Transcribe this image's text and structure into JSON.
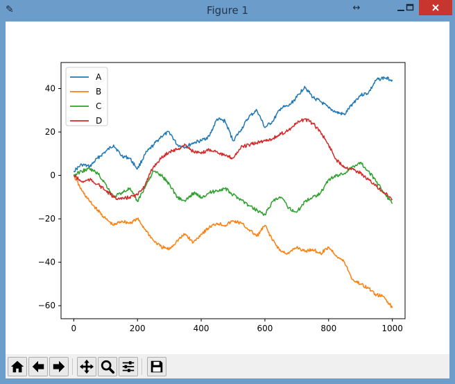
{
  "window": {
    "title": "Figure 1"
  },
  "icons": {
    "app": "pen-icon",
    "resize": "resize-arrows-icon",
    "minimize": "minimize-icon",
    "maximize": "maximize-icon",
    "close": "close-icon"
  },
  "toolbar": {
    "tools": [
      "home-icon",
      "back-arrow-icon",
      "forward-arrow-icon",
      "pan-icon",
      "zoom-icon",
      "configure-subplots-icon",
      "save-icon"
    ]
  },
  "colors": {
    "A": "#1f77b4",
    "B": "#ff7f0e",
    "C": "#2ca02c",
    "D": "#d62728"
  },
  "chart_data": {
    "type": "line",
    "title": "",
    "xlabel": "",
    "ylabel": "",
    "xlim": [
      -40,
      1040
    ],
    "ylim": [
      -66,
      52
    ],
    "x_ticks": [
      0,
      200,
      400,
      600,
      800,
      1000
    ],
    "y_ticks": [
      -60,
      -40,
      -20,
      0,
      20,
      40
    ],
    "x_tick_labels": [
      "0",
      "200",
      "400",
      "600",
      "800",
      "1000"
    ],
    "y_tick_labels": [
      "−60",
      "−40",
      "−20",
      "0",
      "20",
      "40"
    ],
    "grid": false,
    "legend": "upper-left",
    "x": [
      0,
      25,
      50,
      75,
      100,
      125,
      150,
      175,
      200,
      225,
      250,
      275,
      300,
      325,
      350,
      375,
      400,
      425,
      450,
      475,
      500,
      525,
      550,
      575,
      600,
      625,
      650,
      675,
      700,
      725,
      750,
      775,
      800,
      825,
      850,
      875,
      900,
      925,
      950,
      975,
      1000
    ],
    "series": [
      {
        "name": "A",
        "values": [
          2,
          5,
          4,
          8,
          11,
          14,
          9,
          8,
          3,
          10,
          14,
          18,
          20,
          14,
          13,
          15,
          16,
          18,
          26,
          25,
          16,
          21,
          27,
          30,
          22,
          25,
          31,
          32,
          36,
          41,
          36,
          34,
          31,
          29,
          28,
          33,
          37,
          38,
          44,
          45,
          44
        ]
      },
      {
        "name": "B",
        "values": [
          0,
          -7,
          -12,
          -16,
          -20,
          -23,
          -21,
          -22,
          -20,
          -25,
          -30,
          -33,
          -34,
          -30,
          -27,
          -31,
          -27,
          -24,
          -22,
          -23,
          -21,
          -22,
          -25,
          -28,
          -23,
          -30,
          -35,
          -36,
          -33,
          -35,
          -34,
          -36,
          -33,
          -37,
          -40,
          -48,
          -50,
          -52,
          -55,
          -56,
          -61
        ]
      },
      {
        "name": "C",
        "values": [
          0,
          2,
          3,
          1,
          -4,
          -10,
          -8,
          -6,
          -12,
          -5,
          2,
          0,
          -4,
          -10,
          -12,
          -8,
          -10,
          -8,
          -7,
          -6,
          -9,
          -11,
          -14,
          -16,
          -18,
          -12,
          -10,
          -15,
          -17,
          -12,
          -10,
          -8,
          -2,
          0,
          1,
          4,
          6,
          2,
          -3,
          -8,
          -13
        ]
      },
      {
        "name": "D",
        "values": [
          0,
          -3,
          -2,
          -4,
          -7,
          -10,
          -11,
          -10,
          -9,
          -4,
          4,
          8,
          11,
          12,
          14,
          11,
          10,
          12,
          11,
          9,
          8,
          13,
          14,
          15,
          16,
          17,
          19,
          21,
          24,
          26,
          24,
          20,
          14,
          7,
          4,
          3,
          1,
          -2,
          -5,
          -8,
          -11
        ]
      }
    ]
  }
}
